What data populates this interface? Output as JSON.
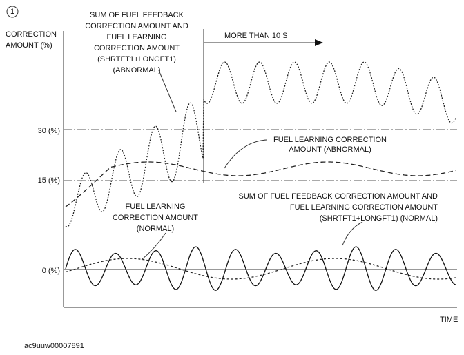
{
  "circle_label": "1",
  "y_axis_label": [
    "CORRECTION",
    "AMOUNT (%)"
  ],
  "annotations": [
    {
      "lines": [
        "SUM OF FUEL FEEDBACK",
        "CORRECTION AMOUNT AND",
        "FUEL LEARNING",
        "CORRECTION AMOUNT",
        "(SHRTFT1+LONGFT1)",
        "(ABNORMAL)"
      ]
    },
    {
      "lines": [
        "MORE THAN 10 S"
      ]
    },
    {
      "lines": [
        "FUEL LEARNING CORRECTION",
        "AMOUNT (ABNORMAL)"
      ]
    },
    {
      "lines": [
        "FUEL LEARNING",
        "CORRECTION AMOUNT",
        "(NORMAL)"
      ]
    },
    {
      "lines": [
        "SUM OF FUEL FEEDBACK CORRECTION AMOUNT AND",
        "FUEL LEARNING CORRECTION AMOUNT",
        "(SHRTFT1+LONGFT1) (NORMAL)"
      ]
    }
  ],
  "levels": [
    "30 (%)",
    "15 (%)",
    "0 (%)"
  ],
  "x_axis_label": "TIME",
  "figure_id": "ac9uuw00007891"
}
